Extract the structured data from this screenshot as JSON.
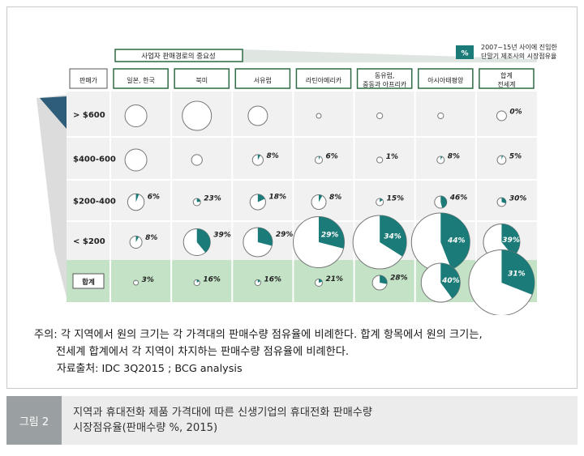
{
  "chart_data": {
    "type": "bubble-matrix",
    "title": "사업자 판매경로의 중요성",
    "legend": {
      "symbol": "%",
      "text_lines": [
        "2007~15년 사이에 진입한",
        "단말기 제조사의 시장점유율"
      ]
    },
    "row_header": "판매가",
    "columns": [
      "일본, 한국",
      "북미",
      "서유럽",
      "라틴아메리카",
      "동유럽,\n중동과 아프리카",
      "아시아태평양",
      "합계\n전세계"
    ],
    "rows": [
      {
        "label": "> $600",
        "cells": [
          {
            "size": 0.45
          },
          {
            "size": 0.6
          },
          {
            "size": 0.4
          },
          {
            "size": 0.08
          },
          {
            "size": 0.12
          },
          {
            "size": 0.12
          },
          {
            "size": 0.2,
            "share": 0
          }
        ]
      },
      {
        "label": "$400-600",
        "cells": [
          {
            "size": 0.45
          },
          {
            "size": 0.22
          },
          {
            "size": 0.22,
            "share": 8
          },
          {
            "size": 0.15,
            "share": 6
          },
          {
            "size": 0.12,
            "share": 1
          },
          {
            "size": 0.15,
            "share": 8
          },
          {
            "size": 0.18,
            "share": 5
          }
        ]
      },
      {
        "label": "$200-400",
        "cells": [
          {
            "size": 0.34,
            "share": 6
          },
          {
            "size": 0.15,
            "share": 23
          },
          {
            "size": 0.32,
            "share": 18
          },
          {
            "size": 0.3,
            "share": 8
          },
          {
            "size": 0.15,
            "share": 15
          },
          {
            "size": 0.25,
            "share": 46
          },
          {
            "size": 0.18,
            "share": 30
          }
        ]
      },
      {
        "label": "< $200",
        "cells": [
          {
            "size": 0.25,
            "share": 8
          },
          {
            "size": 0.55,
            "share": 39
          },
          {
            "size": 0.6,
            "share": 29
          },
          {
            "size": 1.05,
            "share": 29
          },
          {
            "size": 1.1,
            "share": 34
          },
          {
            "size": 1.2,
            "share": 44
          },
          {
            "size": 0.75,
            "share": 39
          }
        ]
      },
      {
        "label": "합계",
        "cells": [
          {
            "size": 0.08,
            "share": 3
          },
          {
            "size": 0.12,
            "share": 16
          },
          {
            "size": 0.12,
            "share": 16
          },
          {
            "size": 0.15,
            "share": 21
          },
          {
            "size": 0.3,
            "share": 28
          },
          {
            "size": 0.8,
            "share": 40
          },
          {
            "size": 1.35,
            "share": 31
          }
        ]
      }
    ]
  },
  "notes": {
    "prefix": "주의:",
    "line1": "각 지역에서 원의 크기는 각 가격대의 판매수량 점유율에 비례한다. 합계 항목에서 원의 크기는,",
    "line2": "전세계 합계에서 각 지역이 차지하는 판매수량 점유율에 비례한다.",
    "source": "자료출처: IDC 3Q2015 ; BCG analysis"
  },
  "caption": {
    "label": "그림 2",
    "line1": "지역과 휴대전화 제품 가격대에 따른 신생기업의 휴대전화 판매수량",
    "line2": "시장점유율(판매수량 %, 2015)"
  },
  "colors": {
    "teal": "#1a7b78",
    "header_green": "#2e6a44",
    "total_row": "#c4e3c6",
    "grid_bg": "#f1f1f1"
  }
}
